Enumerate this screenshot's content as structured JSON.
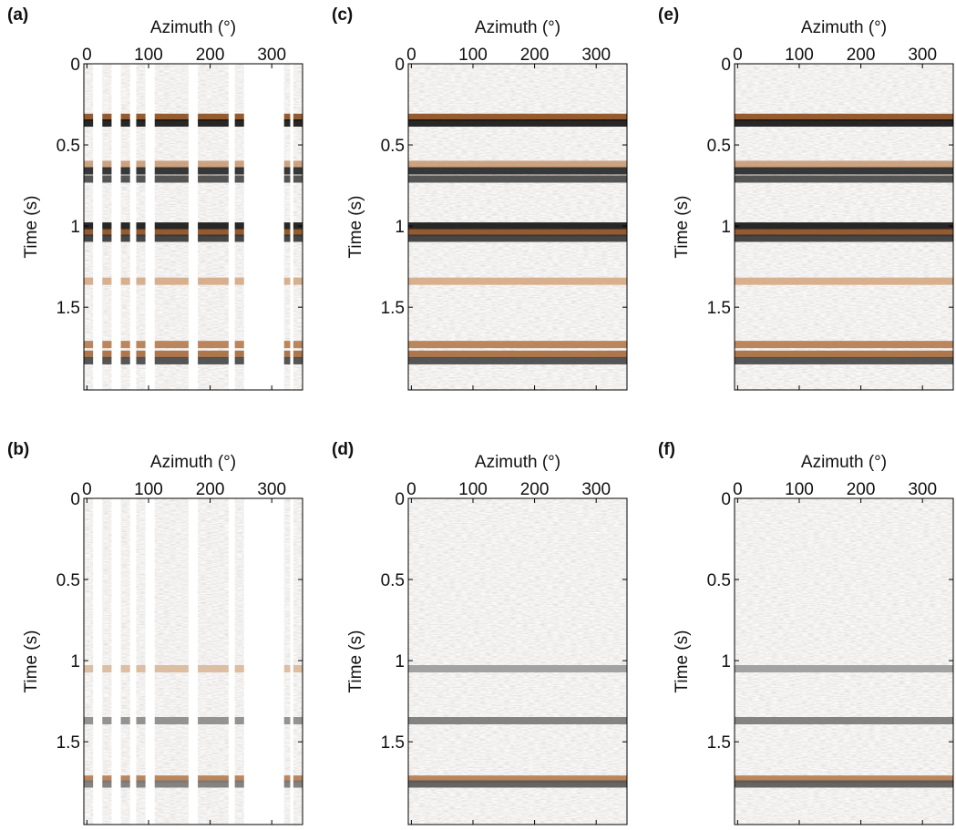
{
  "chart_data": [
    {
      "type": "seismic",
      "label": "(a)",
      "xlabel": "Azimuth (°)",
      "ylabel": "Time (s)",
      "xlim": [
        -5,
        350
      ],
      "ylim": [
        0,
        2.01
      ],
      "xticks": [
        0,
        100,
        200,
        300
      ],
      "yticks": [
        0,
        0.5,
        1,
        1.5
      ],
      "dead_traces": [
        [
          10,
          25
        ],
        [
          40,
          55
        ],
        [
          70,
          80
        ],
        [
          95,
          110
        ],
        [
          165,
          180
        ],
        [
          230,
          240
        ],
        [
          255,
          320
        ],
        [
          330,
          335
        ]
      ],
      "events": [
        {
          "time": 0.33,
          "color": "#8a4a1c"
        },
        {
          "time": 0.365,
          "color": "#111111"
        },
        {
          "time": 0.62,
          "color": "#c89a74"
        },
        {
          "time": 0.66,
          "color": "#222222"
        },
        {
          "time": 0.71,
          "color": "#444444"
        },
        {
          "time": 1.0,
          "color": "#111111"
        },
        {
          "time": 1.04,
          "color": "#8a4a1c"
        },
        {
          "time": 1.075,
          "color": "#333333"
        },
        {
          "time": 1.34,
          "color": "#d4a884"
        },
        {
          "time": 1.73,
          "color": "#b57a4c"
        },
        {
          "time": 1.79,
          "color": "#a5683a"
        },
        {
          "time": 1.83,
          "color": "#444444"
        }
      ]
    },
    {
      "type": "seismic",
      "label": "(b)",
      "xlabel": "Azimuth (°)",
      "ylabel": "Time (s)",
      "xlim": [
        -5,
        350
      ],
      "ylim": [
        0,
        2.01
      ],
      "xticks": [
        0,
        100,
        200,
        300
      ],
      "yticks": [
        0,
        0.5,
        1,
        1.5
      ],
      "dead_traces": [
        [
          10,
          25
        ],
        [
          40,
          55
        ],
        [
          70,
          80
        ],
        [
          95,
          110
        ],
        [
          165,
          180
        ],
        [
          230,
          240
        ],
        [
          255,
          320
        ],
        [
          330,
          335
        ]
      ],
      "events": [
        {
          "time": 1.05,
          "color": "#d9b89a"
        },
        {
          "time": 1.37,
          "color": "#888888"
        },
        {
          "time": 1.73,
          "color": "#b57a4c"
        },
        {
          "time": 1.76,
          "color": "#777777"
        }
      ]
    },
    {
      "type": "seismic",
      "label": "(c)",
      "xlabel": "Azimuth (°)",
      "ylabel": "Time (s)",
      "xlim": [
        -5,
        350
      ],
      "ylim": [
        0,
        2.01
      ],
      "xticks": [
        0,
        100,
        200,
        300
      ],
      "yticks": [
        0,
        0.5,
        1,
        1.5
      ],
      "dead_traces": [],
      "events": [
        {
          "time": 0.33,
          "color": "#8a4a1c"
        },
        {
          "time": 0.365,
          "color": "#111111"
        },
        {
          "time": 0.62,
          "color": "#c89a74"
        },
        {
          "time": 0.66,
          "color": "#222222"
        },
        {
          "time": 0.71,
          "color": "#444444"
        },
        {
          "time": 1.0,
          "color": "#111111"
        },
        {
          "time": 1.04,
          "color": "#8a4a1c"
        },
        {
          "time": 1.075,
          "color": "#333333"
        },
        {
          "time": 1.34,
          "color": "#d4a884"
        },
        {
          "time": 1.73,
          "color": "#b57a4c"
        },
        {
          "time": 1.79,
          "color": "#a5683a"
        },
        {
          "time": 1.83,
          "color": "#444444"
        }
      ]
    },
    {
      "type": "seismic",
      "label": "(d)",
      "xlabel": "Azimuth (°)",
      "ylabel": "Time (s)",
      "xlim": [
        -5,
        350
      ],
      "ylim": [
        0,
        2.01
      ],
      "xticks": [
        0,
        100,
        200,
        300
      ],
      "yticks": [
        0,
        0.5,
        1,
        1.5
      ],
      "dead_traces": [],
      "events": [
        {
          "time": 1.05,
          "color": "#999999"
        },
        {
          "time": 1.37,
          "color": "#777777"
        },
        {
          "time": 1.73,
          "color": "#b57a4c"
        },
        {
          "time": 1.76,
          "color": "#555555"
        }
      ]
    },
    {
      "type": "seismic",
      "label": "(e)",
      "xlabel": "Azimuth (°)",
      "ylabel": "Time (s)",
      "xlim": [
        -5,
        350
      ],
      "ylim": [
        0,
        2.01
      ],
      "xticks": [
        0,
        100,
        200,
        300
      ],
      "yticks": [
        0,
        0.5,
        1,
        1.5
      ],
      "dead_traces": [],
      "events": [
        {
          "time": 0.33,
          "color": "#8a4a1c"
        },
        {
          "time": 0.365,
          "color": "#111111"
        },
        {
          "time": 0.62,
          "color": "#c89a74"
        },
        {
          "time": 0.66,
          "color": "#222222"
        },
        {
          "time": 0.71,
          "color": "#444444"
        },
        {
          "time": 1.0,
          "color": "#111111"
        },
        {
          "time": 1.04,
          "color": "#8a4a1c"
        },
        {
          "time": 1.075,
          "color": "#333333"
        },
        {
          "time": 1.34,
          "color": "#d4a884"
        },
        {
          "time": 1.73,
          "color": "#b57a4c"
        },
        {
          "time": 1.79,
          "color": "#a5683a"
        },
        {
          "time": 1.83,
          "color": "#444444"
        }
      ]
    },
    {
      "type": "seismic",
      "label": "(f)",
      "xlabel": "Azimuth (°)",
      "ylabel": "Time (s)",
      "xlim": [
        -5,
        350
      ],
      "ylim": [
        0,
        2.01
      ],
      "xticks": [
        0,
        100,
        200,
        300
      ],
      "yticks": [
        0,
        0.5,
        1,
        1.5
      ],
      "dead_traces": [],
      "events": [
        {
          "time": 1.05,
          "color": "#999999"
        },
        {
          "time": 1.37,
          "color": "#777777"
        },
        {
          "time": 1.73,
          "color": "#b57a4c"
        },
        {
          "time": 1.76,
          "color": "#555555"
        }
      ]
    }
  ]
}
